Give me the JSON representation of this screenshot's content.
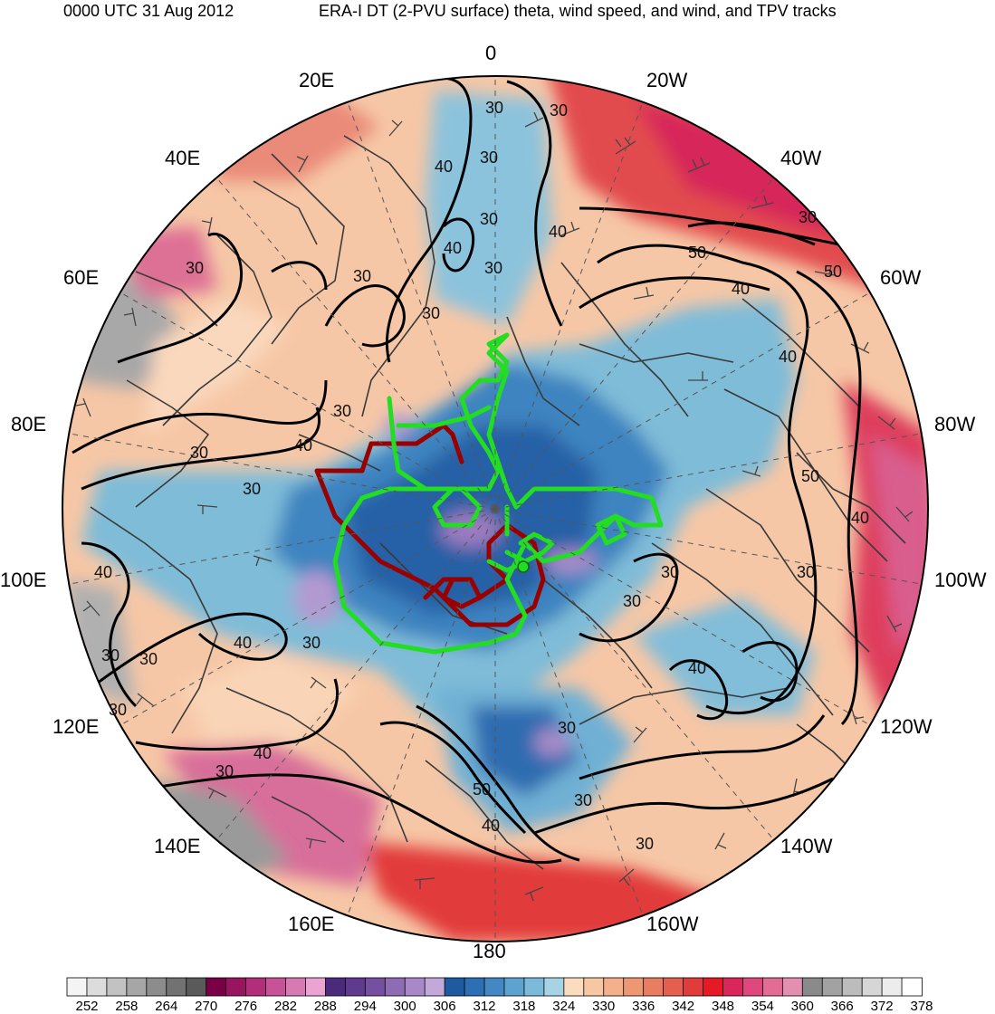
{
  "header": {
    "left": "0000 UTC 31 Aug 2012",
    "right": "ERA-I DT (2-PVU surface) theta, wind speed, and wind, and TPV tracks"
  },
  "map": {
    "projection": "north-polar-stereographic",
    "longitude_labels": [
      "0",
      "20W",
      "40W",
      "60W",
      "80W",
      "100W",
      "120W",
      "140W",
      "160W",
      "180",
      "160E",
      "140E",
      "120E",
      "100E",
      "80E",
      "60E",
      "40E",
      "20E"
    ],
    "contour_labels": [
      "30",
      "30",
      "40",
      "30",
      "30",
      "40",
      "30",
      "40",
      "50",
      "30",
      "50",
      "40",
      "40",
      "30",
      "30",
      "30",
      "30",
      "40",
      "30",
      "30",
      "50",
      "40",
      "30",
      "30",
      "30",
      "40",
      "40",
      "30",
      "30",
      "30",
      "30",
      "40",
      "30",
      "40",
      "30"
    ],
    "colors": {
      "land_border": "#3a3a3a",
      "contour": "#000000",
      "track_green": "#22dd22",
      "track_red": "#990000"
    }
  },
  "colorbar": {
    "tick_labels": [
      "252",
      "258",
      "264",
      "270",
      "276",
      "282",
      "288",
      "294",
      "300",
      "306",
      "312",
      "318",
      "324",
      "330",
      "336",
      "342",
      "348",
      "354",
      "360",
      "366",
      "372",
      "378"
    ],
    "colors": [
      "#f4f4f4",
      "#dcdcdc",
      "#c2c2c2",
      "#a6a6a6",
      "#8c8c8c",
      "#727272",
      "#5a5a5a",
      "#7a0045",
      "#98155f",
      "#b22d7a",
      "#c75297",
      "#d77ab2",
      "#eaa3d3",
      "#4b2a7c",
      "#603a8e",
      "#7650a0",
      "#8e6cb3",
      "#a888c6",
      "#c3a8da",
      "#1f5aa0",
      "#2d6fb3",
      "#4388c2",
      "#5ca3cf",
      "#7cbad9",
      "#a7d4e5",
      "#fbdcbf",
      "#f7c6a2",
      "#f3b08a",
      "#ee9775",
      "#e97d62",
      "#e45f4e",
      "#df3c3b",
      "#e61a26",
      "#d9275b",
      "#e0477c",
      "#e36c95",
      "#e28fb0",
      "#8a8a8a",
      "#a2a2a2",
      "#bcbcbc",
      "#d6d6d6",
      "#ececec",
      "#ffffff"
    ]
  }
}
